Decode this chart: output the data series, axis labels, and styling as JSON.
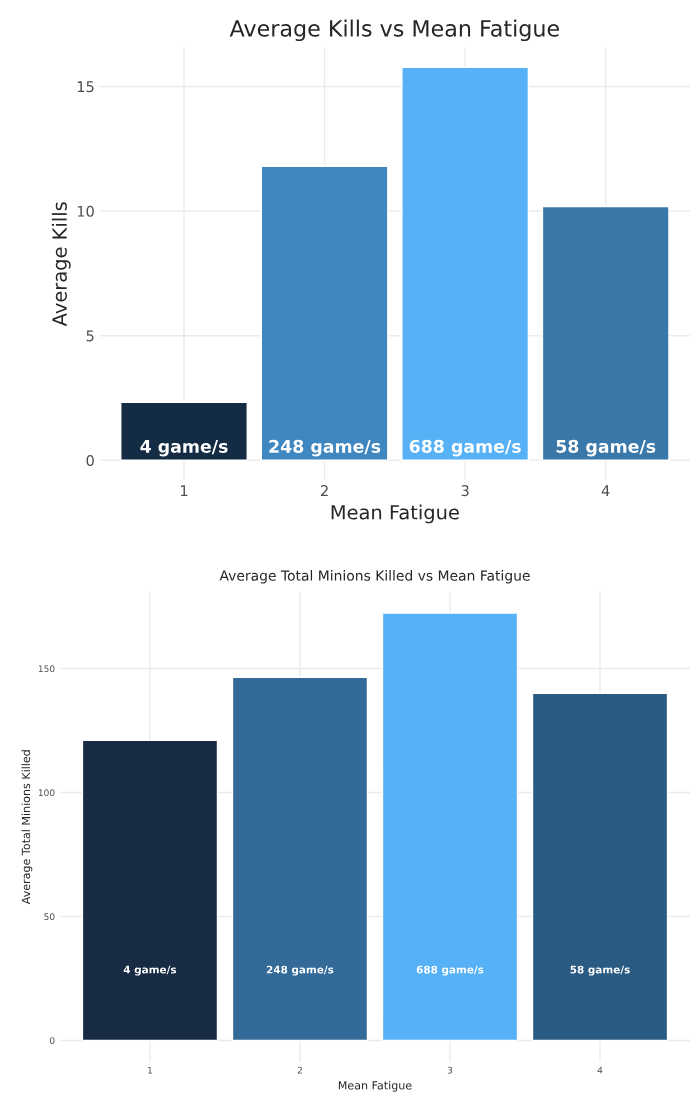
{
  "chart_data": [
    {
      "type": "bar",
      "title": "Average Kills vs Mean Fatigue",
      "xlabel": "Mean Fatigue",
      "ylabel": "Average Kills",
      "categories": [
        "1",
        "2",
        "3",
        "4"
      ],
      "values": [
        2.33,
        11.8,
        15.77,
        10.18
      ],
      "colors": [
        "#132b43",
        "#3f87c0",
        "#56b1f7",
        "#3a78a9"
      ],
      "ylim": [
        -0.79,
        16.56
      ],
      "yticks": [
        0,
        5,
        10,
        15
      ],
      "grid": true,
      "annotations": [
        "4 game/s",
        "248 game/s",
        "688 game/s",
        "58 game/s"
      ]
    },
    {
      "type": "bar",
      "title": "Average Total Minions Killed vs Mean Fatigue",
      "xlabel": "Mean Fatigue",
      "ylabel": "Average Total Minions Killed",
      "categories": [
        "1",
        "2",
        "3",
        "4"
      ],
      "values": [
        121.1,
        146.5,
        172.4,
        140.0
      ],
      "colors": [
        "#172b42",
        "#336a98",
        "#56b1f7",
        "#2a5b83"
      ],
      "ylim": [
        -8.6,
        181
      ],
      "yticks": [
        0,
        50,
        100,
        150
      ],
      "grid": true,
      "annotations": [
        "4 game/s",
        "248 game/s",
        "688 game/s",
        "58 game/s"
      ]
    }
  ]
}
